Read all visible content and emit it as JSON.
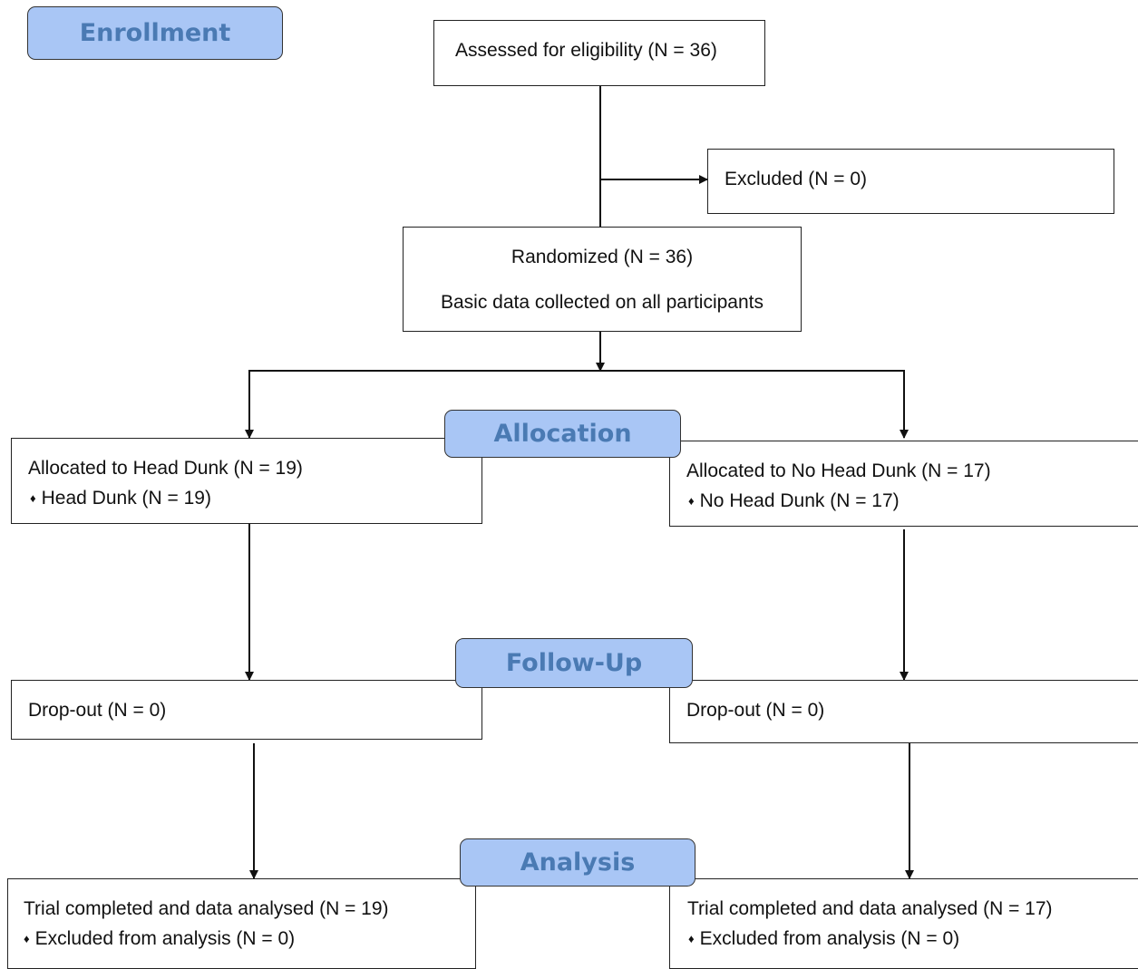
{
  "stages": {
    "enrollment": "Enrollment",
    "allocation": "Allocation",
    "follow_up": "Follow-Up",
    "analysis": "Analysis"
  },
  "enrollment": {
    "assessed": "Assessed for eligibility (N = 36)",
    "excluded": "Excluded (N = 0)",
    "randomized": "Randomized (N = 36)",
    "basic_data": "Basic data collected on all participants"
  },
  "left_arm": {
    "allocated": "Allocated to Head Dunk (N = 19)",
    "received": "Head Dunk (N = 19)",
    "dropout": "Drop-out (N = 0)",
    "analysed": "Trial completed and data analysed  (N = 19)",
    "excluded_analysis": "Excluded from analysis (N = 0)"
  },
  "right_arm": {
    "allocated": "Allocated to No Head Dunk (N = 17)",
    "received": "No Head Dunk (N = 17)",
    "dropout": "Drop-out (N = 0)",
    "analysed": "Trial completed and data analysed  (N = 17)",
    "excluded_analysis": "Excluded from analysis (N = 0)"
  },
  "bullet_glyph": "♦"
}
